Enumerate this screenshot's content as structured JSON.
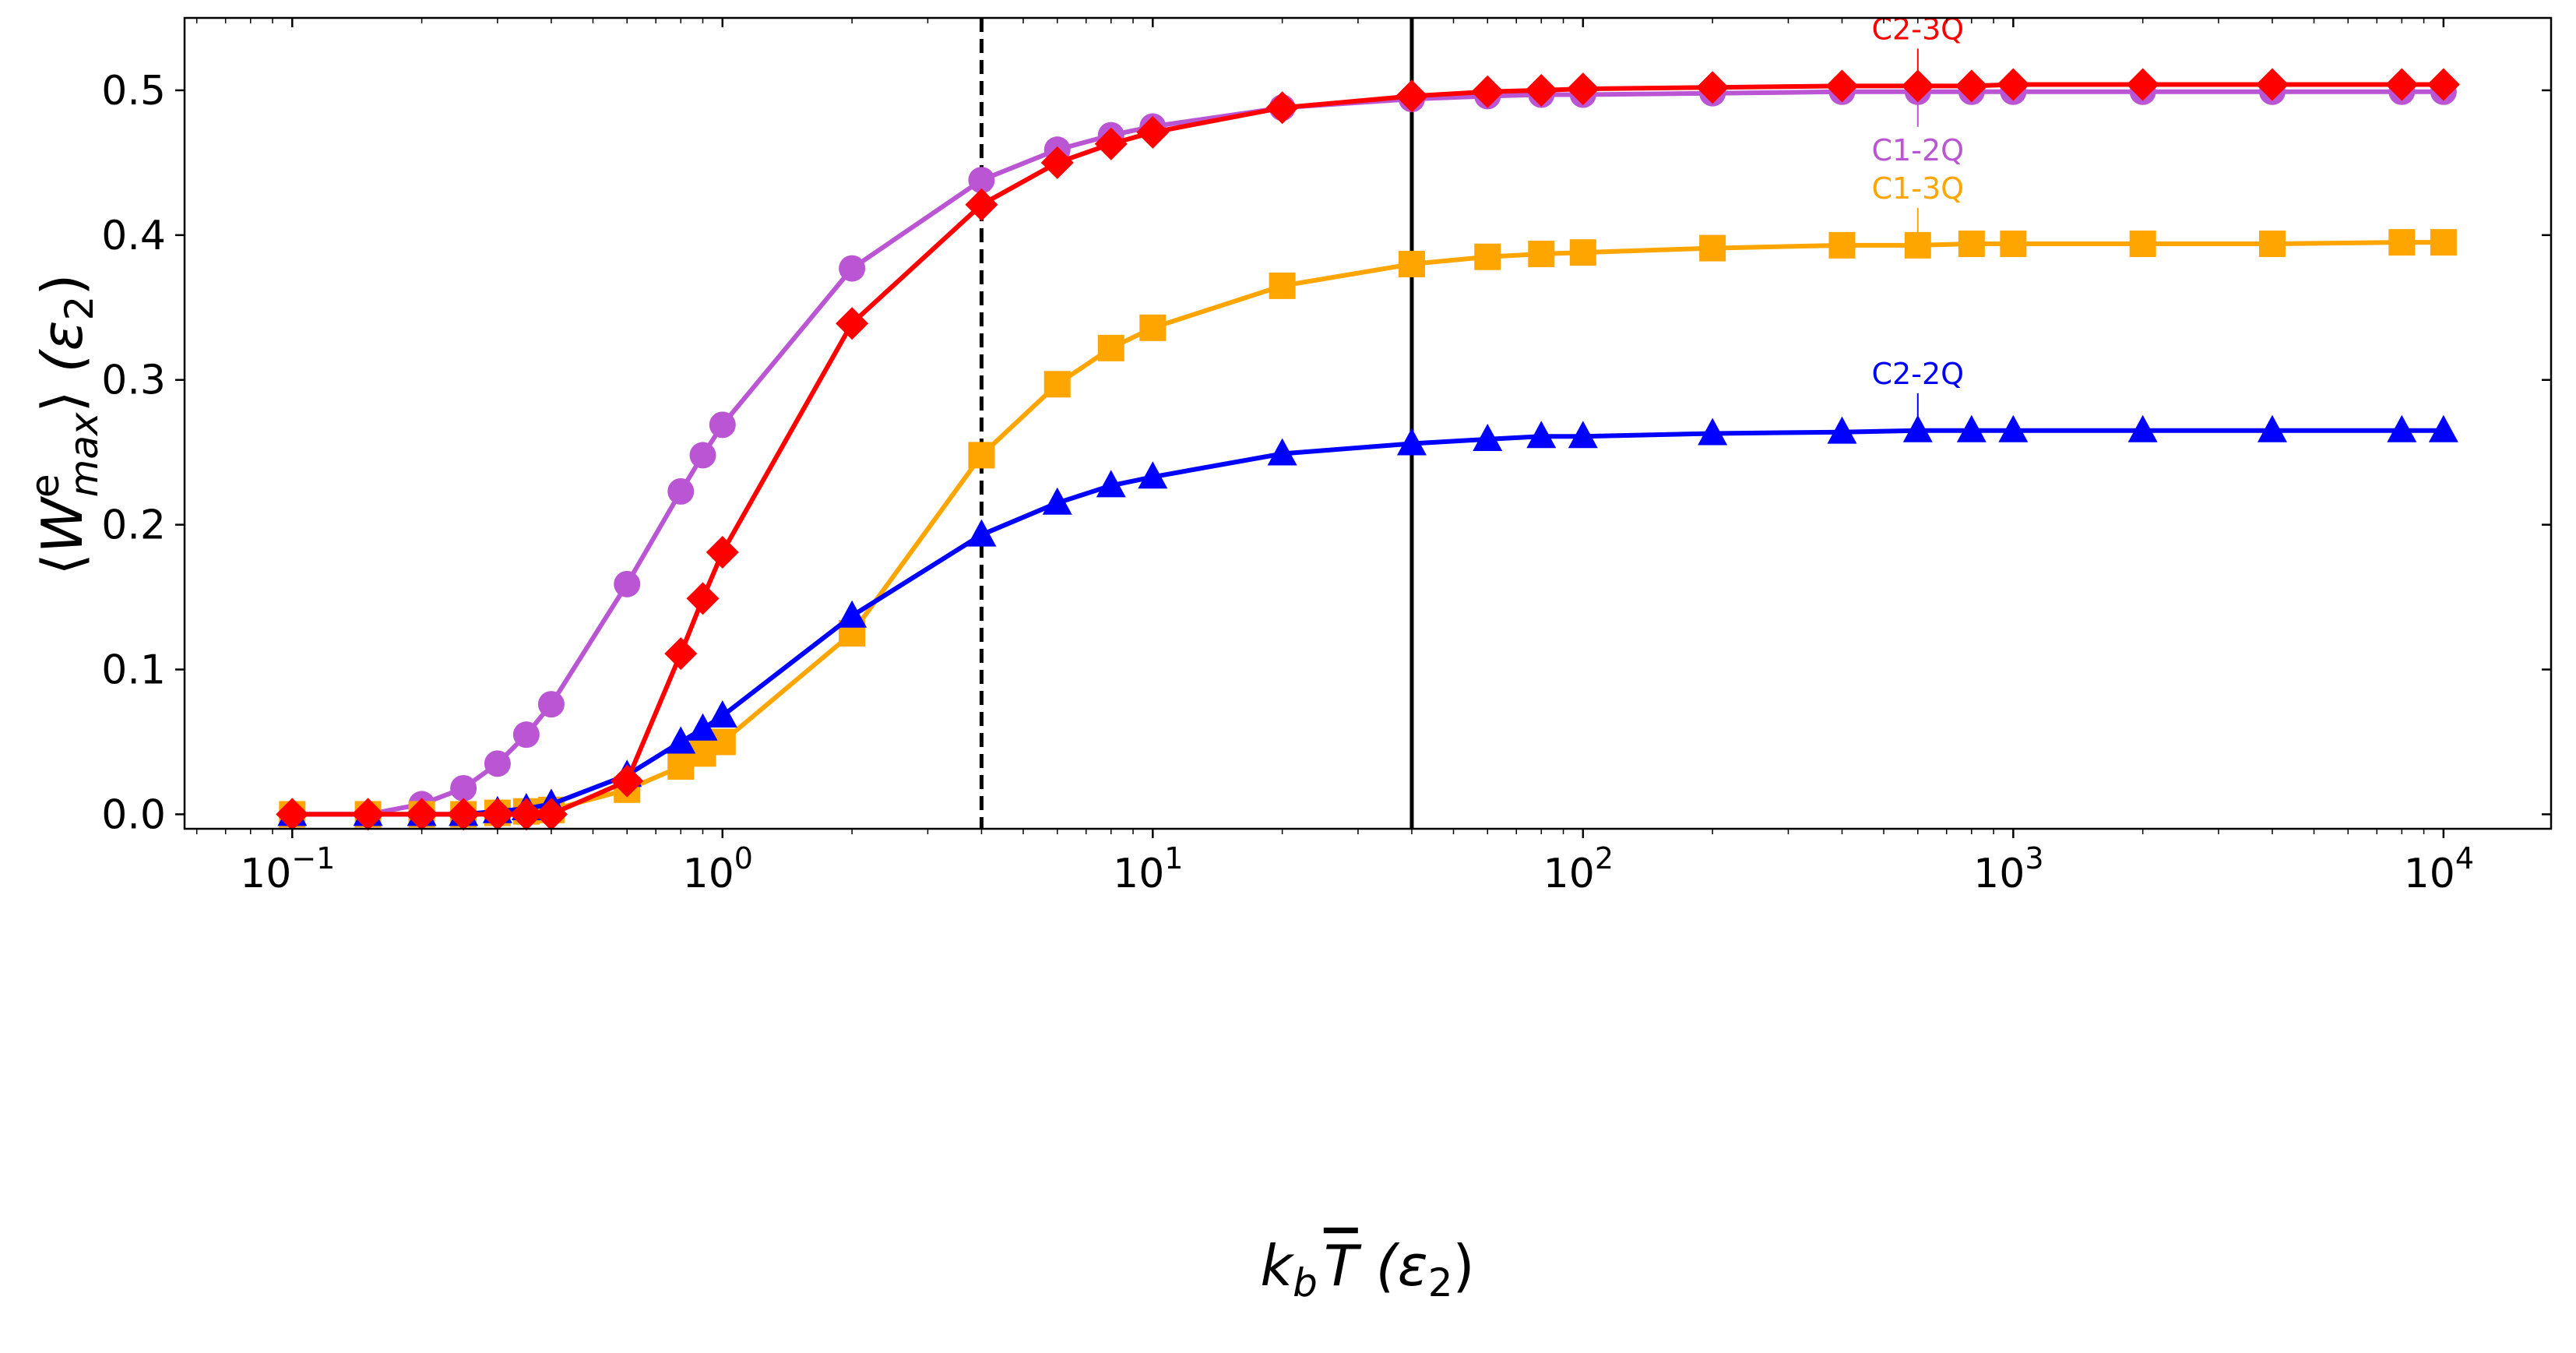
{
  "chart_data": {
    "type": "line",
    "title": "",
    "xlabel": {
      "k": "k",
      "sub": "b",
      "T": "T",
      "unit": " (ε",
      "unit_sub": "2",
      "unit_close": ")"
    },
    "ylabel": {
      "open": "⟨",
      "W": "W",
      "sup": "e",
      "sub": "max",
      "close": "⟩",
      "unit": " (ε",
      "unit_sub": "2",
      "unit_close": ")"
    },
    "x_scale": "log",
    "xlim": [
      0.0562,
      17783
    ],
    "ylim": [
      -0.01,
      0.55
    ],
    "grid": false,
    "x_ticks": [
      {
        "base": "10",
        "exp": "−1"
      },
      {
        "base": "10",
        "exp": "0"
      },
      {
        "base": "10",
        "exp": "1"
      },
      {
        "base": "10",
        "exp": "2"
      },
      {
        "base": "10",
        "exp": "3"
      },
      {
        "base": "10",
        "exp": "4"
      }
    ],
    "y_ticks": [
      "0.0",
      "0.1",
      "0.2",
      "0.3",
      "0.4",
      "0.5"
    ],
    "vertical_lines": [
      {
        "x": 4,
        "style": "dashed",
        "color": "#000000"
      },
      {
        "x": 40,
        "style": "solid",
        "color": "#000000"
      }
    ],
    "x": [
      0.1,
      0.15,
      0.2,
      0.25,
      0.3,
      0.35,
      0.4,
      0.6,
      0.8,
      0.9,
      1,
      2,
      4,
      6,
      8,
      10,
      20,
      40,
      60,
      80,
      100,
      200,
      400,
      600,
      800,
      1000,
      2000,
      4000,
      8000,
      10000
    ],
    "series": [
      {
        "name": "C1-2Q",
        "color": "#BA55D3",
        "marker": "circle",
        "values": [
          0,
          0,
          0.007,
          0.018,
          0.035,
          0.055,
          0.076,
          0.159,
          0.223,
          0.248,
          0.269,
          0.377,
          0.438,
          0.459,
          0.469,
          0.475,
          0.488,
          0.494,
          0.496,
          0.497,
          0.497,
          0.498,
          0.499,
          0.499,
          0.499,
          0.499,
          0.499,
          0.499,
          0.499,
          0.499
        ],
        "label_position": "below"
      },
      {
        "name": "C1-3Q",
        "color": "#FFA500",
        "marker": "square",
        "values": [
          0,
          0,
          0,
          0,
          0.001,
          0.002,
          0.003,
          0.017,
          0.033,
          0.042,
          0.05,
          0.125,
          0.248,
          0.297,
          0.322,
          0.336,
          0.365,
          0.38,
          0.385,
          0.387,
          0.388,
          0.391,
          0.393,
          0.393,
          0.394,
          0.394,
          0.394,
          0.394,
          0.395,
          0.395
        ],
        "label_position": "above"
      },
      {
        "name": "C2-2Q",
        "color": "#0000FF",
        "marker": "triangle",
        "values": [
          0,
          0,
          0,
          0,
          0.002,
          0.004,
          0.007,
          0.027,
          0.05,
          0.059,
          0.068,
          0.137,
          0.193,
          0.215,
          0.227,
          0.233,
          0.249,
          0.256,
          0.259,
          0.261,
          0.261,
          0.263,
          0.264,
          0.265,
          0.265,
          0.265,
          0.265,
          0.265,
          0.265,
          0.265
        ],
        "label_position": "above"
      },
      {
        "name": "C2-3Q",
        "color": "#FF0000",
        "marker": "diamond",
        "values": [
          0,
          0,
          0,
          0,
          0,
          0,
          0,
          0.023,
          0.111,
          0.149,
          0.181,
          0.339,
          0.421,
          0.45,
          0.463,
          0.471,
          0.488,
          0.496,
          0.499,
          0.5,
          0.501,
          0.502,
          0.503,
          0.503,
          0.503,
          0.504,
          0.504,
          0.504,
          0.504,
          0.504
        ],
        "label_position": "above"
      }
    ],
    "annotation_x": 600
  }
}
